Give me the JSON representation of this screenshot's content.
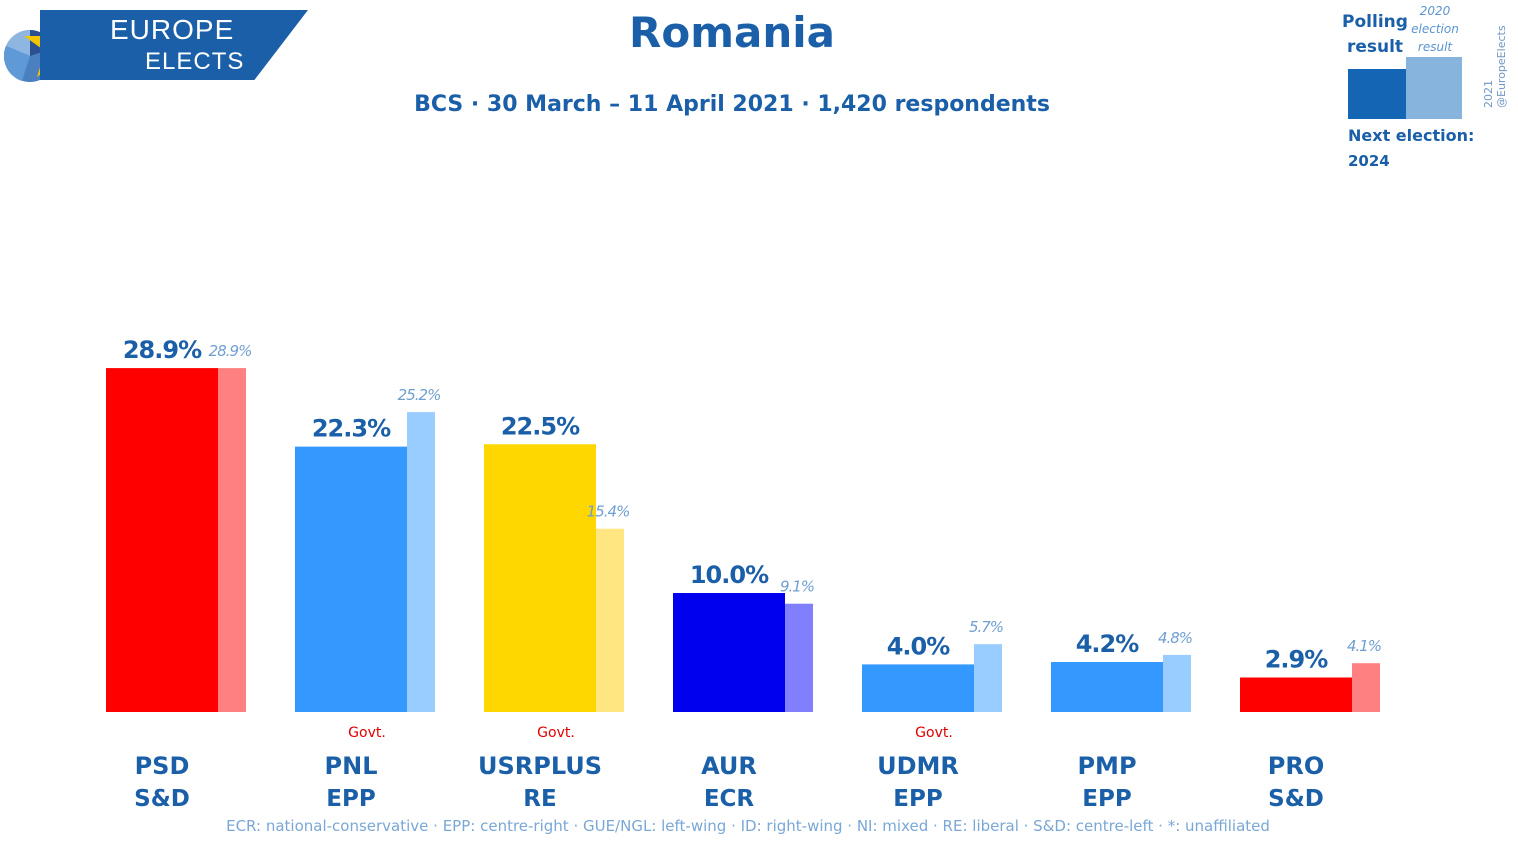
{
  "header": {
    "logo_line1": "EUROPE",
    "logo_line2": "ELECTS",
    "title": "Romania",
    "subtitle": "BCS · 30 March – 11 April 2021 · 1,420 respondents"
  },
  "legend": {
    "polling_label": "Polling result",
    "previous_label": "2020 election result",
    "next_election_label": "Next election:",
    "next_election_year": "2024",
    "copyright": "2021 @EuropeElects"
  },
  "footer": "ECR: national-conservative · EPP: centre-right · GUE/NGL: left-wing · ID: right-wing · NI: mixed · RE: liberal · S&D: centre-left · *: unaffiliated",
  "colors": {
    "text_blue": "#1a5fa8",
    "prev_label_blue": "#6f9fd0",
    "govt_red": "#e00000"
  },
  "chart_data": {
    "type": "bar",
    "ylim": [
      0,
      30
    ],
    "grid": false,
    "categories": [
      "PSD",
      "PNL",
      "USRPLUS",
      "AUR",
      "UDMR",
      "PMP",
      "PRO"
    ],
    "groups": [
      "S&D",
      "EPP",
      "RE",
      "ECR",
      "EPP",
      "EPP",
      "S&D"
    ],
    "government": [
      false,
      true,
      true,
      false,
      true,
      false,
      false
    ],
    "govt_label": "Govt.",
    "series": [
      {
        "name": "Polling result",
        "values": [
          28.9,
          22.3,
          22.5,
          10.0,
          4.0,
          4.2,
          2.9
        ],
        "labels": [
          "28.9%",
          "22.3%",
          "22.5%",
          "10.0%",
          "4.0%",
          "4.2%",
          "2.9%"
        ],
        "colors": [
          "#ff0000",
          "#3399ff",
          "#ffd700",
          "#0000ee",
          "#3399ff",
          "#3399ff",
          "#ff0000"
        ]
      },
      {
        "name": "2020 election result",
        "values": [
          28.9,
          25.2,
          15.4,
          9.1,
          5.7,
          4.8,
          4.1
        ],
        "labels": [
          "28.9%",
          "25.2%",
          "15.4%",
          "9.1%",
          "5.7%",
          "4.8%",
          "4.1%"
        ],
        "colors": [
          "#ff8080",
          "#99ccff",
          "#ffe680",
          "#8080ff",
          "#99ccff",
          "#99ccff",
          "#ff8080"
        ]
      }
    ]
  }
}
